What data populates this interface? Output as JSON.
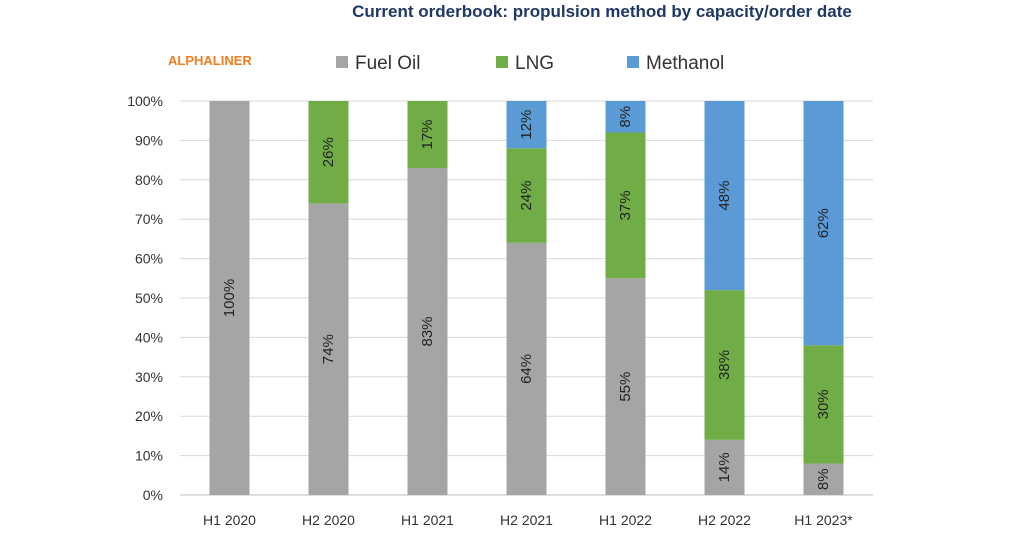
{
  "chart_data": {
    "type": "bar",
    "stacked": true,
    "title": "Current orderbook: propulsion method by capacity/order date",
    "brand": "ALPHALINER",
    "categories": [
      "H1 2020",
      "H2 2020",
      "H1 2021",
      "H2 2021",
      "H1 2022",
      "H2 2022",
      "H1 2023*"
    ],
    "series": [
      {
        "name": "Fuel Oil",
        "color": "#a5a5a5",
        "values": [
          100,
          74,
          83,
          64,
          55,
          14,
          8
        ]
      },
      {
        "name": "LNG",
        "color": "#70ad47",
        "values": [
          0,
          26,
          17,
          24,
          37,
          38,
          30
        ]
      },
      {
        "name": "Methanol",
        "color": "#5b9bd5",
        "values": [
          0,
          0,
          0,
          12,
          8,
          48,
          62
        ]
      }
    ],
    "y_ticks": [
      "0%",
      "10%",
      "20%",
      "30%",
      "40%",
      "50%",
      "60%",
      "70%",
      "80%",
      "90%",
      "100%"
    ],
    "ylim": [
      0,
      100
    ],
    "xlabel": "",
    "ylabel": "",
    "legend_position": "top",
    "grid": true
  }
}
